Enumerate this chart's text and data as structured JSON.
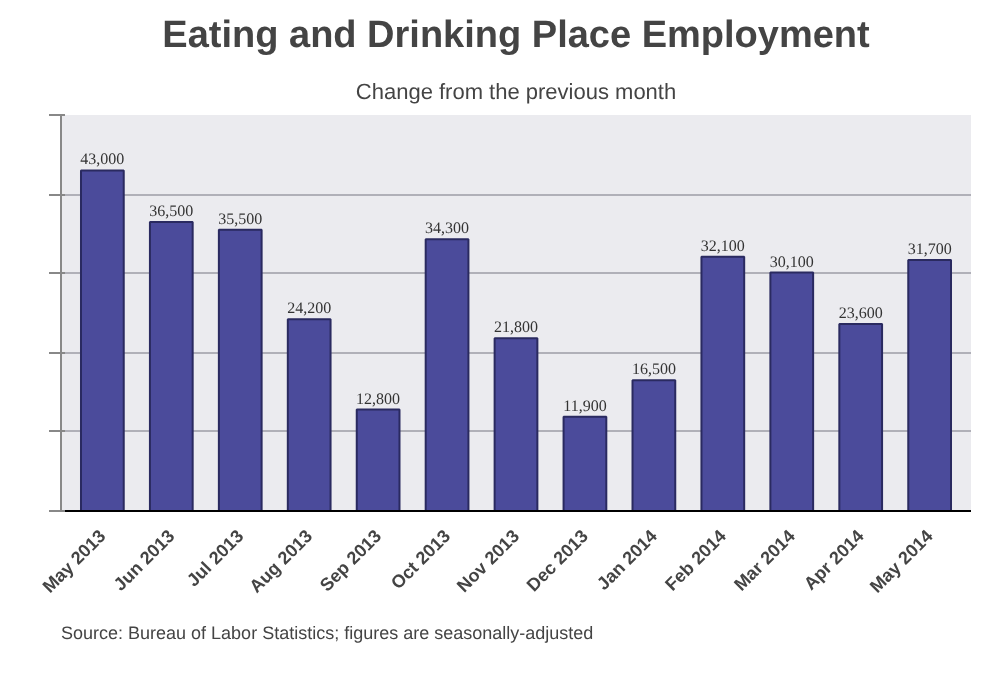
{
  "chart_data": {
    "type": "bar",
    "title": "Eating and Drinking Place Employment",
    "subtitle": "Change from the previous month",
    "categories": [
      "May 2013",
      "Jun 2013",
      "Jul 2013",
      "Aug 2013",
      "Sep 2013",
      "Oct 2013",
      "Nov 2013",
      "Dec 2013",
      "Jan 2014",
      "Feb 2014",
      "Mar 2014",
      "Apr 2014",
      "May 2014"
    ],
    "values": [
      43000,
      36500,
      35500,
      24200,
      12800,
      34300,
      21800,
      11900,
      16500,
      32100,
      30100,
      23600,
      31700
    ],
    "value_labels": [
      "43,000",
      "36,500",
      "35,500",
      "24,200",
      "12,800",
      "34,300",
      "21,800",
      "11,900",
      "16,500",
      "32,100",
      "30,100",
      "23,600",
      "31,700"
    ],
    "color": "#4b4b9b",
    "ylim": [
      0,
      50000
    ],
    "yticks": [
      {
        "value": 0,
        "label": null
      },
      {
        "value": 10000,
        "label": null
      },
      {
        "value": 20000,
        "label": null
      },
      {
        "value": 30000,
        "label": null
      },
      {
        "value": 40000,
        "label": null
      },
      {
        "value": 50000,
        "label": null
      }
    ],
    "grid": "y",
    "tick_labels": "x",
    "annotations": [
      "Source: Bureau of Labor Statistics; figures are seasonally-adjusted"
    ]
  }
}
